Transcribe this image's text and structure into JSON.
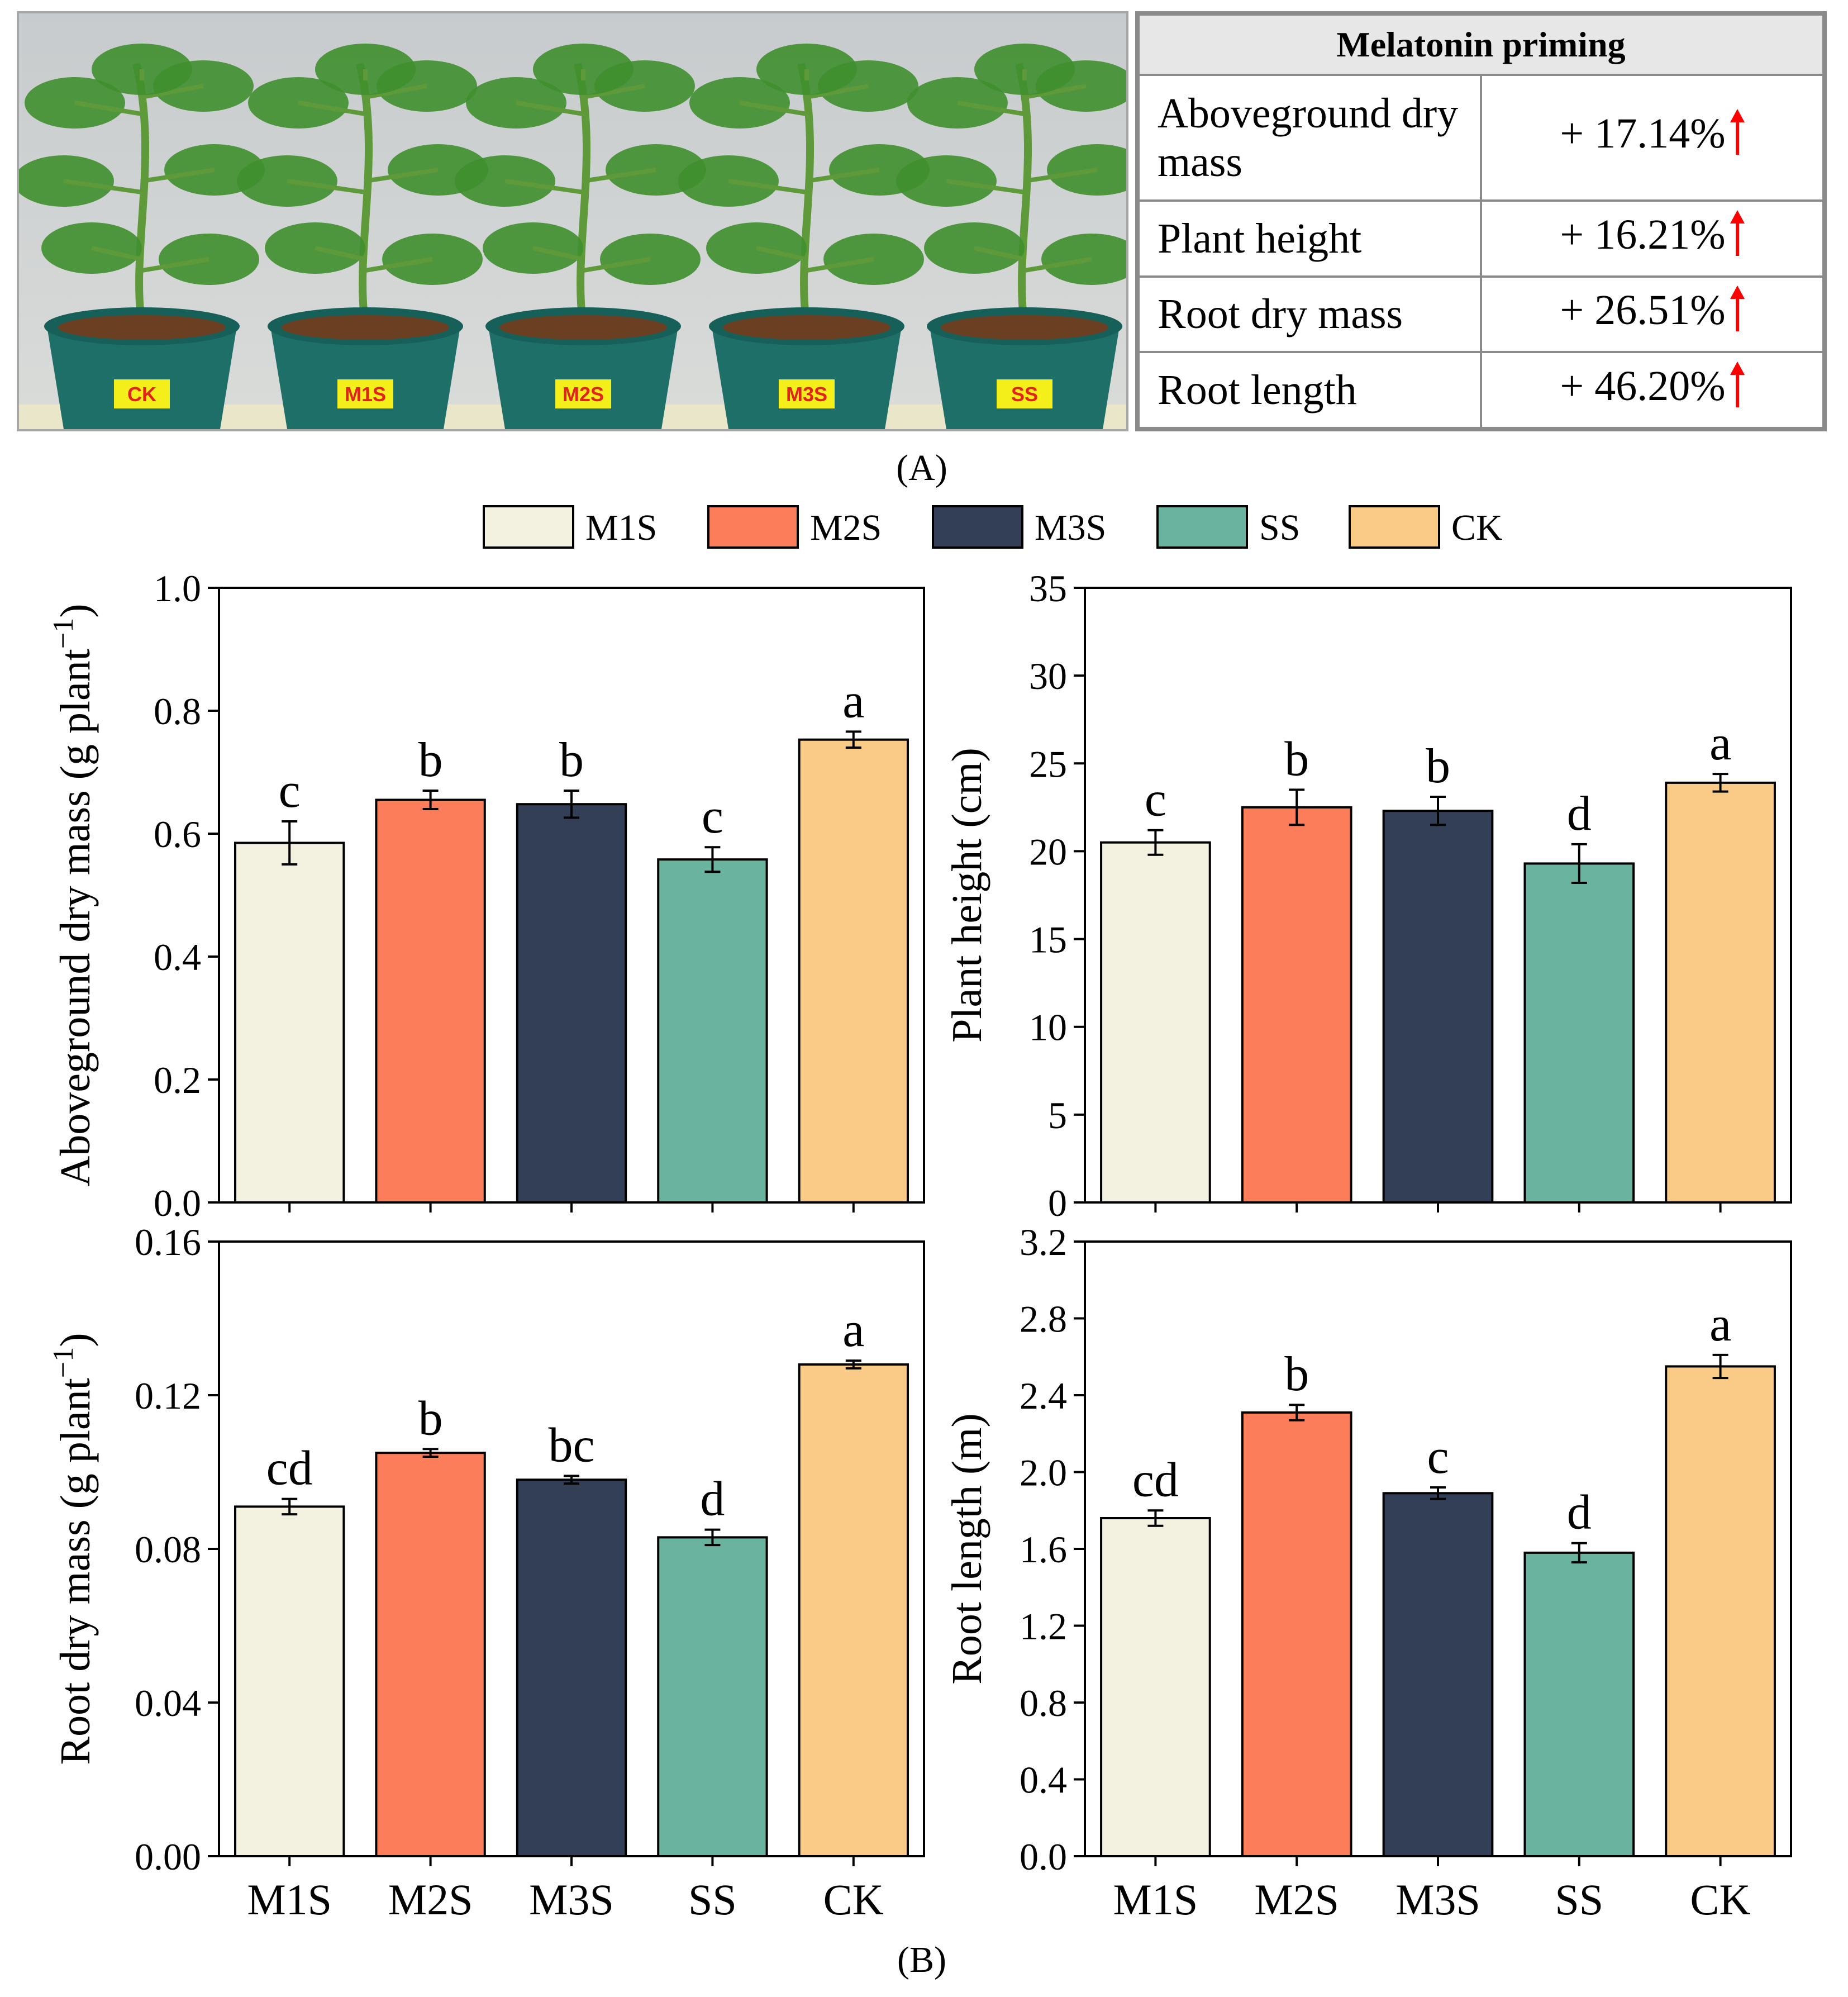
{
  "panel_labels": {
    "a": "(A)",
    "b": "(B)"
  },
  "photo": {
    "pot_labels": [
      "CK",
      "M1S",
      "M2S",
      "M3S",
      "SS"
    ]
  },
  "summary": {
    "title": "Melatonin priming",
    "rows": [
      {
        "label": "Aboveground dry mass",
        "value": "+ 17.14%"
      },
      {
        "label": "Plant height",
        "value": "+ 16.21%"
      },
      {
        "label": "Root dry mass",
        "value": "+ 26.51%"
      },
      {
        "label": "Root length",
        "value": "+ 46.20%"
      }
    ],
    "arrow_color": "#ff0000"
  },
  "legend": [
    "M1S",
    "M2S",
    "M3S",
    "SS",
    "CK"
  ],
  "colors": {
    "M1S": "#f3f1e0",
    "M2S": "#fb7d5a",
    "M3S": "#333f57",
    "SS": "#6ab39e",
    "CK": "#f9cb87"
  },
  "chart_data": [
    {
      "type": "bar",
      "categories": [
        "M1S",
        "M2S",
        "M3S",
        "SS",
        "CK"
      ],
      "values": [
        0.585,
        0.655,
        0.648,
        0.558,
        0.753
      ],
      "errors": [
        0.035,
        0.015,
        0.022,
        0.02,
        0.013
      ],
      "letters": [
        "c",
        "b",
        "b",
        "c",
        "a"
      ],
      "ylabel": "Aboveground dry mass (g plant",
      "ylabel_sup": "−1",
      "ylabel_tail": ")",
      "ylim": [
        0,
        1.0
      ],
      "yticks": [
        "0.0",
        "0.2",
        "0.4",
        "0.6",
        "0.8",
        "1.0"
      ],
      "show_xticklabels": false
    },
    {
      "type": "bar",
      "categories": [
        "M1S",
        "M2S",
        "M3S",
        "SS",
        "CK"
      ],
      "values": [
        20.5,
        22.5,
        22.3,
        19.3,
        23.9
      ],
      "errors": [
        0.7,
        1.0,
        0.8,
        1.1,
        0.5
      ],
      "letters": [
        "c",
        "b",
        "b",
        "d",
        "a"
      ],
      "ylabel": "Plant height (cm)",
      "ylabel_sup": "",
      "ylabel_tail": "",
      "ylim": [
        0,
        35
      ],
      "yticks": [
        "0",
        "5",
        "10",
        "15",
        "20",
        "25",
        "30",
        "35"
      ],
      "show_xticklabels": false
    },
    {
      "type": "bar",
      "categories": [
        "M1S",
        "M2S",
        "M3S",
        "SS",
        "CK"
      ],
      "values": [
        0.091,
        0.105,
        0.098,
        0.083,
        0.128
      ],
      "errors": [
        0.002,
        0.001,
        0.001,
        0.002,
        0.001
      ],
      "letters": [
        "cd",
        "b",
        "bc",
        "d",
        "a"
      ],
      "ylabel": "Root dry mass (g plant",
      "ylabel_sup": "−1",
      "ylabel_tail": ")",
      "ylim": [
        0,
        0.16
      ],
      "yticks": [
        "0.00",
        "0.04",
        "0.08",
        "0.12",
        "0.16"
      ],
      "show_xticklabels": true
    },
    {
      "type": "bar",
      "categories": [
        "M1S",
        "M2S",
        "M3S",
        "SS",
        "CK"
      ],
      "values": [
        1.76,
        2.31,
        1.89,
        1.58,
        2.55
      ],
      "errors": [
        0.04,
        0.04,
        0.03,
        0.05,
        0.06
      ],
      "letters": [
        "cd",
        "b",
        "c",
        "d",
        "a"
      ],
      "ylabel": "Root length (m)",
      "ylabel_sup": "",
      "ylabel_tail": "",
      "ylim": [
        0,
        3.2
      ],
      "yticks": [
        "0.0",
        "0.4",
        "0.8",
        "1.2",
        "1.6",
        "2.0",
        "2.4",
        "2.8",
        "3.2"
      ],
      "show_xticklabels": true
    }
  ]
}
